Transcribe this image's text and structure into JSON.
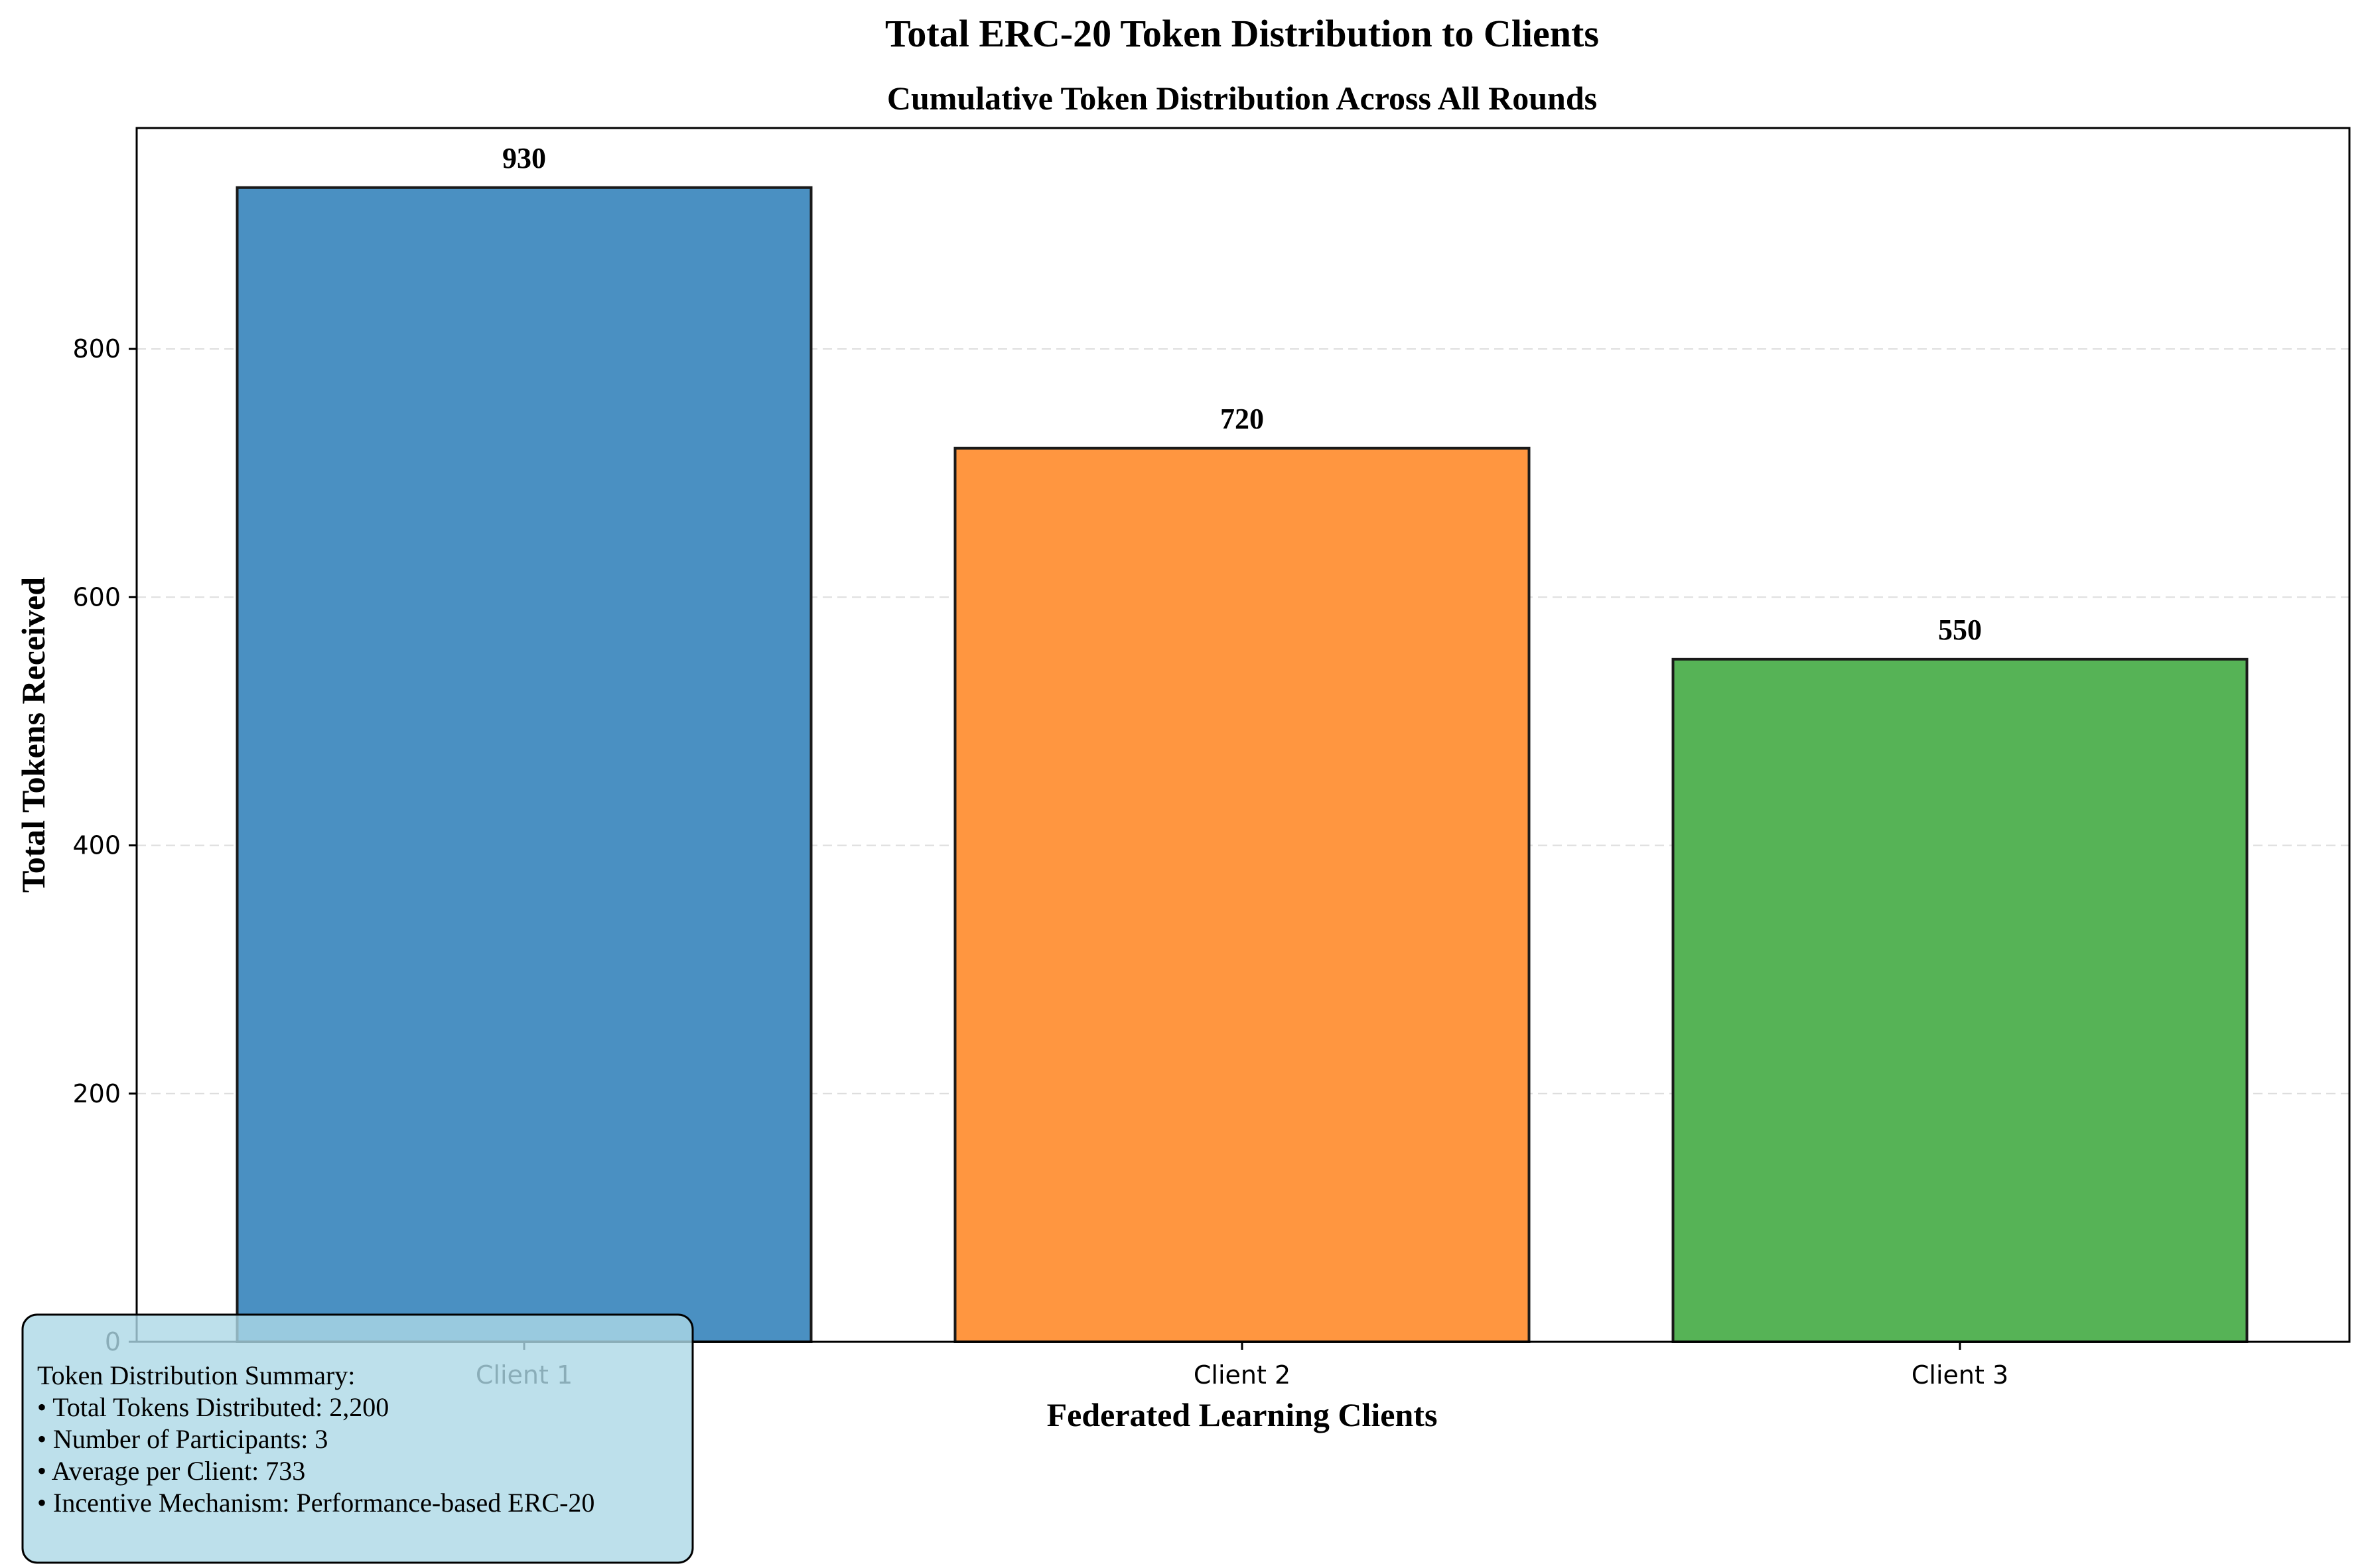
{
  "chart_data": {
    "type": "bar",
    "title": "Total ERC-20 Token Distribution to Clients",
    "subtitle": "Cumulative Token Distribution Across All Rounds",
    "xlabel": "Federated Learning Clients",
    "ylabel": "Total Tokens Received",
    "categories": [
      "Client 1",
      "Client 2",
      "Client 3"
    ],
    "values": [
      930,
      720,
      550
    ],
    "value_labels": [
      "930",
      "720",
      "550"
    ],
    "colors": [
      "#4a90c2",
      "#ff9640",
      "#56b356"
    ],
    "ylim": [
      0,
      978
    ],
    "yticks": [
      0,
      200,
      400,
      600,
      800
    ],
    "grid": true,
    "summary": {
      "heading": "Token Distribution Summary:",
      "lines": [
        "• Total Tokens Distributed: 2,200",
        "• Number of Participants: 3",
        "• Average per Client: 733",
        "• Incentive Mechanism: Performance-based ERC-20"
      ]
    }
  }
}
